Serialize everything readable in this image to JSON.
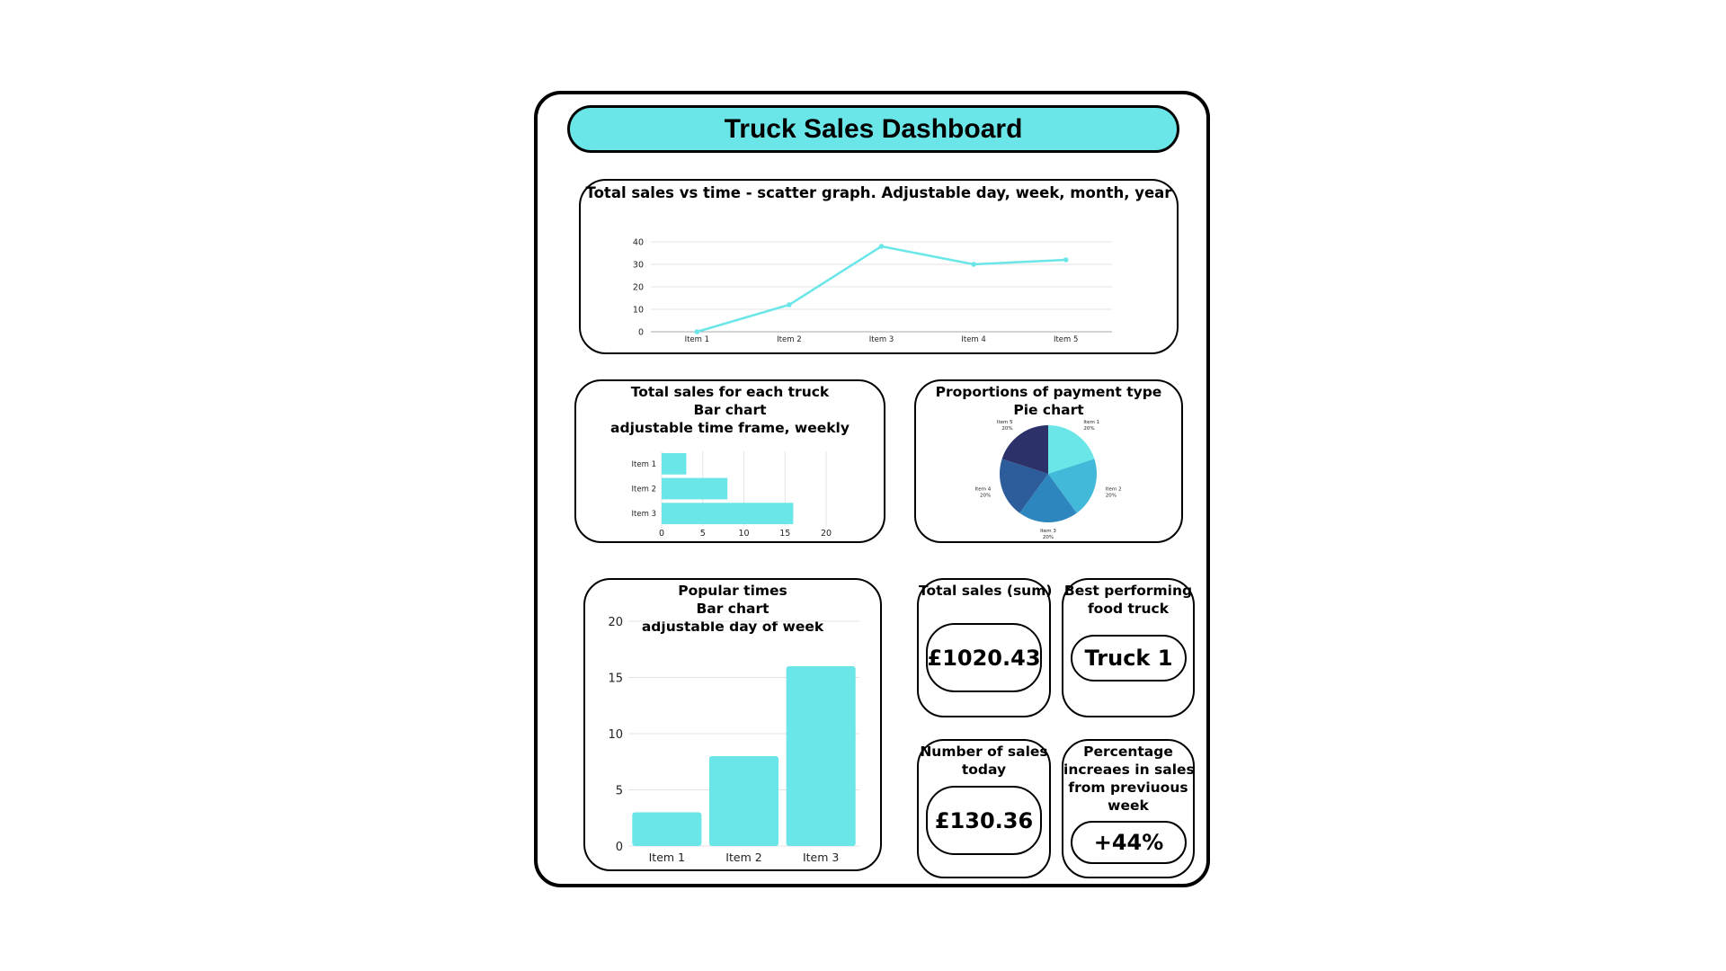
{
  "dashboard": {
    "title": "Truck Sales Dashboard"
  },
  "colors": {
    "accent": "#6be6e8",
    "pie": [
      "#6be6e8",
      "#42b9d8",
      "#2e86bf",
      "#2c5c9a",
      "#2c3169"
    ]
  },
  "line_card": {
    "title": "Total sales vs time - scatter graph. Adjustable day, week, month, year"
  },
  "truck_bar_card": {
    "title_lines": [
      "Total sales for each truck",
      "Bar chart",
      "adjustable time frame, weekly"
    ]
  },
  "pie_card": {
    "title_lines": [
      "Proportions of payment type",
      "Pie chart"
    ]
  },
  "popular_card": {
    "title_lines": [
      "Popular times",
      "Bar chart",
      "adjustable day of week"
    ]
  },
  "kpis": {
    "total_sales": {
      "label_lines": [
        "Total sales (sum)"
      ],
      "value": "£1020.43"
    },
    "best_truck": {
      "label_lines": [
        "Best performing",
        "food truck"
      ],
      "value": "Truck 1"
    },
    "sales_today": {
      "label_lines": [
        "Number of sales",
        "today"
      ],
      "value": "£130.36"
    },
    "pct_increase": {
      "label_lines": [
        "Percentage",
        "increaes in sales",
        "from previuous",
        "week"
      ],
      "value": "+44%"
    }
  },
  "chart_data": [
    {
      "type": "line",
      "categories": [
        "Item 1",
        "Item 2",
        "Item 3",
        "Item 4",
        "Item 5"
      ],
      "values": [
        0,
        12,
        38,
        30,
        32
      ],
      "yticks": [
        0,
        10,
        20,
        30,
        40
      ],
      "ylim": [
        0,
        40
      ],
      "grid": true
    },
    {
      "type": "bar",
      "orientation": "horizontal",
      "categories": [
        "Item 1",
        "Item 2",
        "Item 3"
      ],
      "values": [
        3,
        8,
        16
      ],
      "xticks": [
        0,
        5,
        10,
        15,
        20
      ],
      "xlim": [
        0,
        20
      ],
      "grid": true
    },
    {
      "type": "pie",
      "slices": [
        {
          "label": "Item 1",
          "pct_label": "20%",
          "value": 20
        },
        {
          "label": "Item 2",
          "pct_label": "20%",
          "value": 20
        },
        {
          "label": "Item 3",
          "pct_label": "20%",
          "value": 20
        },
        {
          "label": "Item 4",
          "pct_label": "20%",
          "value": 20
        },
        {
          "label": "Item 5",
          "pct_label": "20%",
          "value": 20
        }
      ]
    },
    {
      "type": "bar",
      "orientation": "vertical",
      "categories": [
        "Item 1",
        "Item 2",
        "Item 3"
      ],
      "values": [
        3,
        8,
        16
      ],
      "yticks": [
        0,
        5,
        10,
        15,
        20
      ],
      "ylim": [
        0,
        20
      ],
      "grid": true
    }
  ]
}
